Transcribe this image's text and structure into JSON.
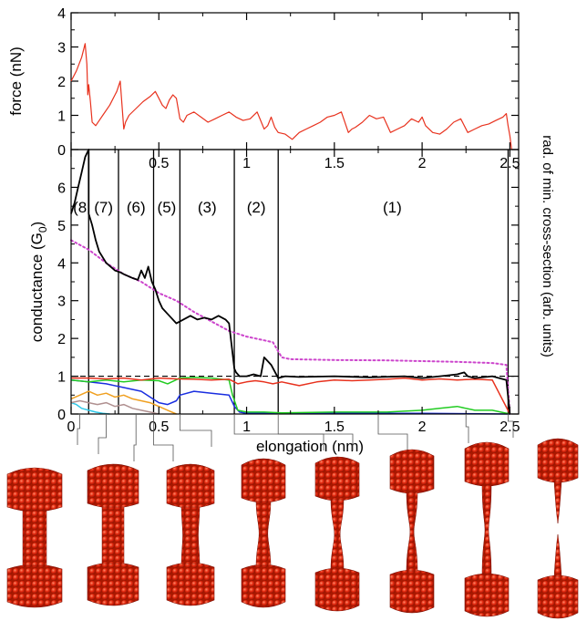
{
  "chart_data": [
    {
      "type": "line",
      "ylabel": "force (nN)",
      "xlim": [
        0,
        2.55
      ],
      "ylim": [
        0,
        4
      ],
      "x_ticks": [
        "0",
        "0.5",
        "1",
        "1.5",
        "2",
        "2.5"
      ],
      "y_ticks": [
        "0",
        "1",
        "2",
        "3",
        "4"
      ],
      "series": [
        {
          "color": "#e8321e",
          "x": [
            0,
            0.03,
            0.06,
            0.08,
            0.09,
            0.095,
            0.1,
            0.11,
            0.12,
            0.14,
            0.18,
            0.22,
            0.26,
            0.28,
            0.3,
            0.31,
            0.33,
            0.37,
            0.41,
            0.45,
            0.48,
            0.5,
            0.52,
            0.54,
            0.56,
            0.58,
            0.6,
            0.62,
            0.64,
            0.66,
            0.7,
            0.74,
            0.78,
            0.82,
            0.86,
            0.9,
            0.94,
            0.98,
            1.02,
            1.06,
            1.1,
            1.12,
            1.14,
            1.16,
            1.18,
            1.22,
            1.26,
            1.3,
            1.34,
            1.38,
            1.42,
            1.46,
            1.5,
            1.54,
            1.58,
            1.6,
            1.62,
            1.66,
            1.7,
            1.74,
            1.78,
            1.82,
            1.86,
            1.9,
            1.94,
            1.98,
            2.0,
            2.02,
            2.06,
            2.1,
            2.14,
            2.18,
            2.22,
            2.26,
            2.3,
            2.34,
            2.38,
            2.42,
            2.46,
            2.48,
            2.49,
            2.5,
            2.51
          ],
          "y": [
            2.0,
            2.3,
            2.7,
            3.1,
            2.5,
            1.6,
            1.9,
            1.4,
            0.8,
            0.7,
            1.0,
            1.3,
            1.7,
            2.0,
            0.6,
            0.8,
            1.0,
            1.2,
            1.4,
            1.55,
            1.7,
            1.5,
            1.3,
            1.2,
            1.45,
            1.6,
            1.5,
            0.9,
            0.8,
            1.0,
            1.1,
            0.95,
            0.8,
            0.9,
            1.0,
            1.1,
            0.95,
            0.85,
            0.9,
            1.1,
            0.6,
            0.7,
            0.95,
            0.65,
            0.5,
            0.45,
            0.3,
            0.5,
            0.6,
            0.7,
            0.8,
            0.95,
            1.0,
            1.1,
            0.5,
            0.6,
            0.65,
            0.8,
            1.0,
            0.9,
            0.95,
            0.5,
            0.6,
            0.7,
            0.9,
            0.8,
            0.95,
            0.7,
            0.5,
            0.45,
            0.6,
            0.8,
            0.9,
            0.5,
            0.6,
            0.7,
            0.75,
            0.85,
            0.95,
            1.05,
            0.7,
            0.4,
            0.0
          ]
        }
      ]
    },
    {
      "type": "line",
      "xlabel": "elongation (nm)",
      "ylabel": "conductance (G0)",
      "ylabel_main": "conductance (G",
      "ylabel_sub": "0",
      "ylabel_end": ")",
      "y2label": "rad. of min. cross-section (arb. units)",
      "xlim": [
        0,
        2.55
      ],
      "ylim": [
        0,
        7
      ],
      "x_ticks": [
        "0",
        "0.5",
        "1",
        "1.5",
        "2",
        "2.5"
      ],
      "y_ticks": [
        "0",
        "1",
        "2",
        "3",
        "4",
        "5",
        "6"
      ],
      "reference_line": {
        "y": 1,
        "style": "dashed"
      },
      "vertical_lines": [
        0.1,
        0.27,
        0.47,
        0.62,
        0.93,
        1.18,
        2.49
      ],
      "regions": [
        {
          "label": "(8",
          "x": 0.05
        },
        {
          "label": "(7)",
          "x": 0.185
        },
        {
          "label": "(6)",
          "x": 0.37
        },
        {
          "label": "(5)",
          "x": 0.545
        },
        {
          "label": "(3)",
          "x": 0.775
        },
        {
          "label": "(2)",
          "x": 1.055
        },
        {
          "label": "(1)",
          "x": 1.83
        }
      ],
      "snapshot_positions": [
        0.05,
        0.2,
        0.37,
        0.47,
        0.62,
        0.93,
        1.18,
        1.75,
        2.25,
        2.49
      ],
      "series": [
        {
          "color": "#000000",
          "x": [
            0,
            0.02,
            0.04,
            0.06,
            0.08,
            0.1,
            0.1,
            0.12,
            0.14,
            0.16,
            0.2,
            0.25,
            0.28,
            0.3,
            0.35,
            0.38,
            0.4,
            0.42,
            0.44,
            0.46,
            0.48,
            0.5,
            0.52,
            0.56,
            0.6,
            0.64,
            0.68,
            0.72,
            0.76,
            0.8,
            0.84,
            0.88,
            0.9,
            0.93,
            0.94,
            0.96,
            1.0,
            1.04,
            1.08,
            1.1,
            1.12,
            1.14,
            1.18,
            1.22,
            1.3,
            1.5,
            1.7,
            1.9,
            2.0,
            2.1,
            2.2,
            2.24,
            2.26,
            2.3,
            2.4,
            2.48,
            2.5
          ],
          "y": [
            5.3,
            5.6,
            6.0,
            6.4,
            6.8,
            7.0,
            5.3,
            5.0,
            4.6,
            4.3,
            4.0,
            3.8,
            3.75,
            3.7,
            3.6,
            3.55,
            3.8,
            3.6,
            3.9,
            3.5,
            3.3,
            3.0,
            2.8,
            2.6,
            2.4,
            2.5,
            2.6,
            2.5,
            2.55,
            2.5,
            2.6,
            2.5,
            2.4,
            1.2,
            1.1,
            1.0,
            1.0,
            1.05,
            1.0,
            1.5,
            1.4,
            1.3,
            0.95,
            1.0,
            0.98,
            1.0,
            0.97,
            1.0,
            0.95,
            1.0,
            1.05,
            1.1,
            1.0,
            0.95,
            1.0,
            0.9,
            0.0
          ]
        },
        {
          "color": "#e8321e",
          "x": [
            0,
            0.1,
            0.2,
            0.3,
            0.4,
            0.5,
            0.6,
            0.7,
            0.8,
            0.9,
            0.93,
            0.95,
            1.0,
            1.05,
            1.1,
            1.15,
            1.2,
            1.25,
            1.3,
            1.4,
            1.5,
            1.6,
            1.7,
            1.8,
            1.9,
            2.0,
            2.1,
            2.2,
            2.3,
            2.4,
            2.5
          ],
          "y": [
            0.95,
            0.95,
            0.93,
            0.95,
            0.9,
            0.95,
            0.93,
            0.92,
            0.9,
            0.92,
            0.85,
            0.8,
            0.85,
            0.88,
            0.85,
            0.8,
            0.85,
            0.8,
            0.75,
            0.85,
            0.9,
            0.88,
            0.9,
            0.92,
            0.95,
            0.9,
            0.93,
            0.9,
            0.92,
            0.9,
            0.0
          ]
        },
        {
          "color": "#22cc22",
          "x": [
            0,
            0.1,
            0.2,
            0.3,
            0.4,
            0.5,
            0.55,
            0.62,
            0.7,
            0.8,
            0.9,
            0.92,
            0.95,
            1.0,
            1.1,
            1.2,
            1.5,
            1.8,
            2.0,
            2.1,
            2.2,
            2.3,
            2.4,
            2.5
          ],
          "y": [
            0.9,
            0.85,
            0.9,
            0.85,
            0.9,
            0.88,
            0.8,
            0.95,
            0.97,
            0.95,
            0.9,
            0.5,
            0.1,
            0.05,
            0.05,
            0.03,
            0.05,
            0.05,
            0.1,
            0.15,
            0.2,
            0.1,
            0.1,
            0.0
          ]
        },
        {
          "color": "#1a2ee0",
          "x": [
            0,
            0.1,
            0.2,
            0.3,
            0.4,
            0.45,
            0.5,
            0.55,
            0.6,
            0.62,
            0.7,
            0.8,
            0.9,
            0.93,
            0.96,
            1.0,
            1.5,
            2.0,
            2.5
          ],
          "y": [
            0.9,
            0.85,
            0.8,
            0.7,
            0.6,
            0.45,
            0.3,
            0.25,
            0.35,
            0.5,
            0.6,
            0.55,
            0.5,
            0.2,
            0.05,
            0.02,
            0.02,
            0.02,
            0.0
          ]
        },
        {
          "color": "#f0a020",
          "x": [
            0,
            0.05,
            0.1,
            0.15,
            0.2,
            0.25,
            0.3,
            0.35,
            0.4,
            0.45,
            0.5,
            0.55,
            0.6
          ],
          "y": [
            0.4,
            0.5,
            0.6,
            0.5,
            0.55,
            0.45,
            0.5,
            0.4,
            0.35,
            0.3,
            0.2,
            0.1,
            0.0
          ]
        },
        {
          "color": "#b09090",
          "x": [
            0,
            0.05,
            0.1,
            0.15,
            0.2,
            0.25,
            0.3,
            0.35,
            0.4,
            0.45,
            0.5
          ],
          "y": [
            0.3,
            0.35,
            0.3,
            0.25,
            0.3,
            0.2,
            0.25,
            0.15,
            0.1,
            0.05,
            0.0
          ]
        },
        {
          "color": "#30c8e8",
          "x": [
            0,
            0.03,
            0.06,
            0.1,
            0.14,
            0.18,
            0.22
          ],
          "y": [
            0.3,
            0.25,
            0.15,
            0.1,
            0.05,
            0.02,
            0.0
          ]
        },
        {
          "color": "#cc44cc",
          "style": "dotted",
          "x": [
            0,
            0.1,
            0.2,
            0.3,
            0.4,
            0.5,
            0.6,
            0.7,
            0.8,
            0.9,
            1.0,
            1.1,
            1.15,
            1.2,
            1.25,
            1.5,
            1.8,
            2.0,
            2.2,
            2.4,
            2.48,
            2.5
          ],
          "y": [
            4.6,
            4.35,
            4.0,
            3.7,
            3.5,
            3.2,
            3.0,
            2.7,
            2.45,
            2.2,
            2.05,
            1.95,
            1.9,
            1.5,
            1.45,
            1.43,
            1.42,
            1.4,
            1.38,
            1.35,
            1.3,
            0.0
          ]
        }
      ]
    }
  ]
}
